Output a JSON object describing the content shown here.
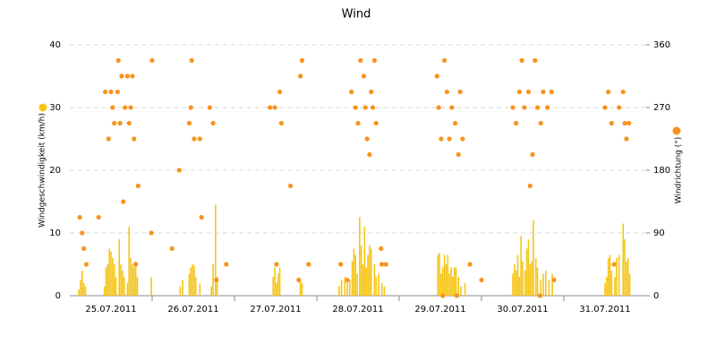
{
  "chart_data": {
    "type": "bar_scatter",
    "title": "Wind",
    "xlim": [
      0,
      7
    ],
    "xticks": [
      {
        "value": 0.5,
        "label": "25.07.2011"
      },
      {
        "value": 1.5,
        "label": "26.07.2011"
      },
      {
        "value": 2.5,
        "label": "27.07.2011"
      },
      {
        "value": 3.5,
        "label": "28.07.2011"
      },
      {
        "value": 4.5,
        "label": "29.07.2011"
      },
      {
        "value": 5.5,
        "label": "30.07.2011"
      },
      {
        "value": 6.5,
        "label": "31.07.2011"
      }
    ],
    "ylim": [
      0,
      40
    ],
    "yticks": [
      0,
      10,
      20,
      30,
      40
    ],
    "y2lim": [
      0,
      360
    ],
    "y2ticks": [
      0,
      90,
      180,
      270,
      360
    ],
    "grid": true,
    "series": [
      {
        "name": "Windgeschwindigkeit (km/h)",
        "color": "#f5c518",
        "kind": "bar",
        "x": [
          0.11,
          0.13,
          0.15,
          0.17,
          0.19,
          0.42,
          0.44,
          0.46,
          0.48,
          0.5,
          0.52,
          0.54,
          0.56,
          0.6,
          0.62,
          0.64,
          0.66,
          0.7,
          0.72,
          0.74,
          0.76,
          0.78,
          0.8,
          0.82,
          0.99,
          1.34,
          1.37,
          1.45,
          1.47,
          1.49,
          1.51,
          1.53,
          1.58,
          1.72,
          1.74,
          1.77,
          1.79,
          2.47,
          2.49,
          2.51,
          2.53,
          2.55,
          2.8,
          2.82,
          3.27,
          3.3,
          3.34,
          3.37,
          3.4,
          3.43,
          3.45,
          3.47,
          3.49,
          3.52,
          3.54,
          3.56,
          3.58,
          3.6,
          3.62,
          3.64,
          3.66,
          3.7,
          3.72,
          3.75,
          3.79,
          3.82,
          4.47,
          4.49,
          4.51,
          4.53,
          4.55,
          4.57,
          4.59,
          4.61,
          4.63,
          4.65,
          4.67,
          4.69,
          4.72,
          4.75,
          4.8,
          5.38,
          5.4,
          5.42,
          5.44,
          5.46,
          5.48,
          5.5,
          5.53,
          5.55,
          5.57,
          5.59,
          5.61,
          5.63,
          5.66,
          5.68,
          5.72,
          5.75,
          5.78,
          5.82,
          5.86,
          6.5,
          6.52,
          6.54,
          6.56,
          6.58,
          6.62,
          6.64,
          6.67,
          6.72,
          6.74,
          6.76,
          6.78,
          6.8
        ],
        "values": [
          1,
          2.5,
          4,
          2,
          1.5,
          1.5,
          4.5,
          5,
          7.5,
          7,
          6,
          5,
          3,
          9,
          5,
          4,
          3,
          2,
          11,
          6,
          5,
          4.5,
          5.5,
          3,
          3,
          1.5,
          2.5,
          3.5,
          4.5,
          5,
          4.8,
          3,
          2,
          1.5,
          5,
          14.5,
          3,
          3,
          4.5,
          2,
          3.5,
          4.5,
          2.5,
          2,
          1.5,
          2.5,
          3,
          2.5,
          2.5,
          5.5,
          7.5,
          6.5,
          3.5,
          12.5,
          8,
          5,
          11,
          4.5,
          6.5,
          8,
          7.5,
          5,
          3,
          3.5,
          2,
          1.5,
          6.5,
          6.8,
          3.5,
          4.5,
          6.5,
          5,
          6.5,
          3.5,
          4.5,
          3,
          4.5,
          4.5,
          3,
          1.5,
          2,
          3.5,
          5,
          4,
          6.5,
          3,
          9.5,
          5.5,
          4,
          7.5,
          9,
          5,
          5.5,
          12,
          6,
          4.5,
          2.5,
          3.5,
          4,
          2.5,
          3.5,
          2,
          3,
          6,
          6.5,
          4,
          3,
          6,
          6.5,
          11.5,
          9,
          5.5,
          6,
          3.5
        ]
      },
      {
        "name": "Windrichtung (°)",
        "color": "#f7941d",
        "kind": "dot",
        "axis": "y2",
        "x": [
          0.12,
          0.15,
          0.17,
          0.2,
          0.35,
          0.43,
          0.47,
          0.5,
          0.52,
          0.54,
          0.58,
          0.59,
          0.61,
          0.63,
          0.65,
          0.67,
          0.7,
          0.72,
          0.74,
          0.76,
          0.78,
          0.8,
          0.83,
          1.0,
          0.99,
          1.24,
          1.33,
          1.45,
          1.47,
          1.48,
          1.51,
          1.58,
          1.6,
          1.7,
          1.74,
          1.78,
          1.9,
          2.43,
          2.49,
          2.51,
          2.55,
          2.57,
          2.68,
          2.78,
          2.8,
          2.82,
          2.9,
          3.29,
          3.37,
          3.42,
          3.47,
          3.5,
          3.53,
          3.57,
          3.59,
          3.61,
          3.64,
          3.66,
          3.68,
          3.7,
          3.72,
          3.78,
          3.79,
          3.84,
          4.46,
          4.48,
          4.51,
          4.53,
          4.55,
          4.58,
          4.61,
          4.64,
          4.68,
          4.7,
          4.72,
          4.74,
          4.77,
          4.86,
          5.0,
          5.38,
          5.42,
          5.46,
          5.49,
          5.52,
          5.57,
          5.59,
          5.62,
          5.65,
          5.68,
          5.71,
          5.72,
          5.75,
          5.8,
          5.85,
          5.88,
          6.5,
          6.54,
          6.58,
          6.61,
          6.67,
          6.72,
          6.74,
          6.76,
          6.79
        ],
        "values": [
          112.5,
          90,
          67.5,
          45,
          112.5,
          292.5,
          225,
          292.5,
          270,
          247.5,
          292.5,
          337.5,
          247.5,
          315,
          135,
          270,
          315,
          247.5,
          270,
          315,
          225,
          45,
          157.5,
          337.5,
          90,
          67.5,
          180,
          247.5,
          270,
          337.5,
          225,
          225,
          112.5,
          270,
          247.5,
          22.5,
          45,
          270,
          270,
          45,
          292.5,
          247.5,
          157.5,
          22.5,
          315,
          337.5,
          45,
          45,
          22.5,
          292.5,
          270,
          247.5,
          337.5,
          315,
          270,
          225,
          202.5,
          292.5,
          270,
          337.5,
          247.5,
          67.5,
          45,
          45,
          315,
          270,
          225,
          0,
          337.5,
          292.5,
          225,
          270,
          247.5,
          0,
          202.5,
          292.5,
          225,
          45,
          22.5,
          270,
          247.5,
          292.5,
          337.5,
          270,
          292.5,
          157.5,
          202.5,
          337.5,
          270,
          0,
          247.5,
          292.5,
          270,
          292.5,
          22.5,
          270,
          292.5,
          247.5,
          45,
          270,
          292.5,
          247.5,
          225,
          247.5
        ]
      }
    ]
  }
}
